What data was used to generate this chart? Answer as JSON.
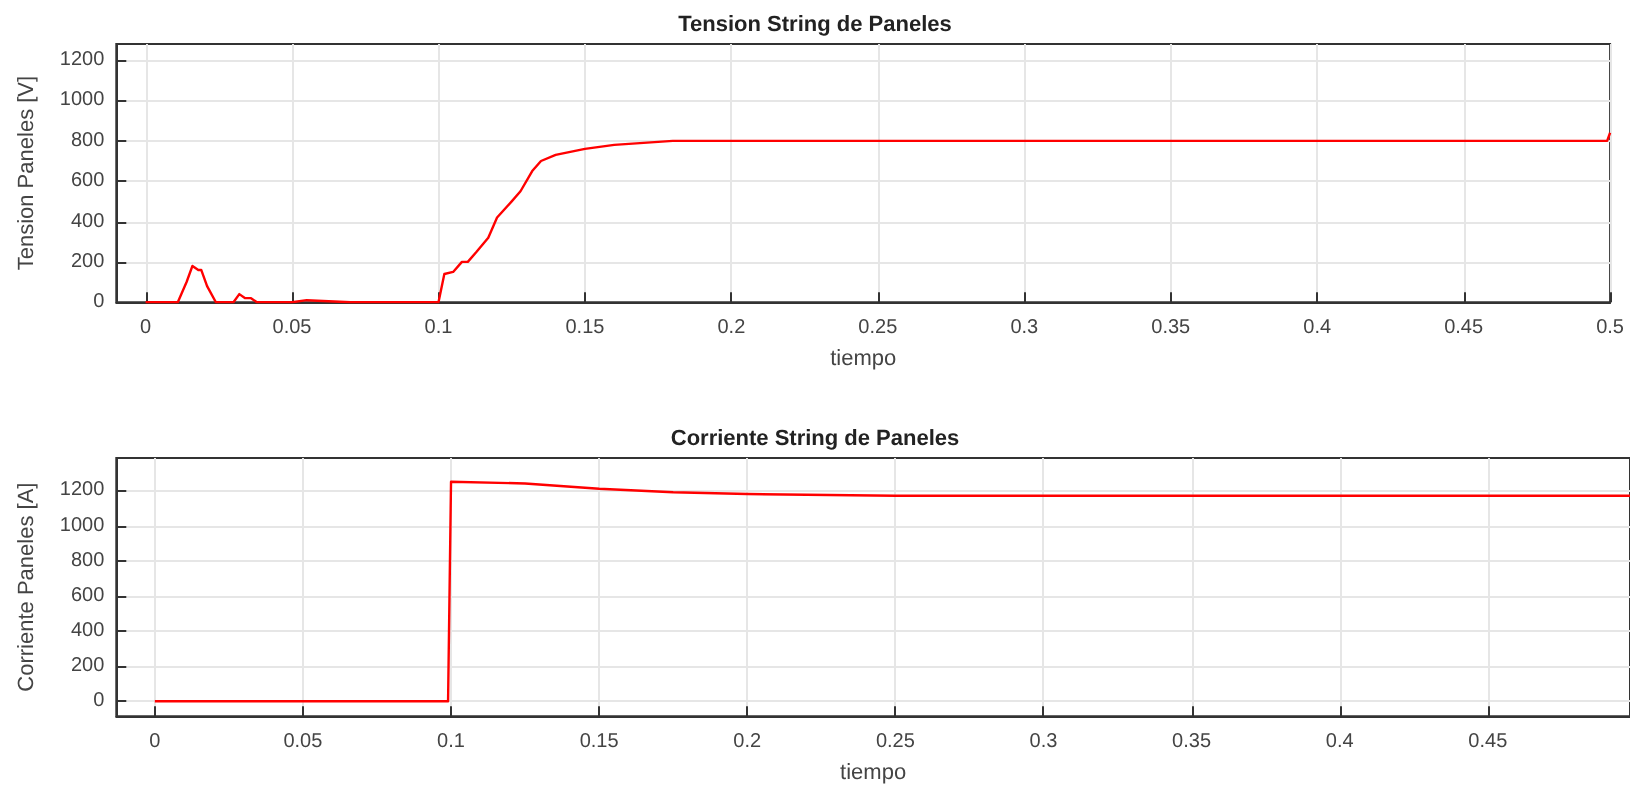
{
  "chart_data": [
    {
      "type": "line",
      "title": "Tension String de Paneles",
      "xlabel": "tiempo",
      "ylabel": "Tension Paneles [V]",
      "grid": true,
      "marker": "none",
      "line_style": "solid",
      "xlim": [
        -0.01,
        0.5
      ],
      "xticks": [
        0,
        0.05,
        0.1,
        0.15,
        0.2,
        0.25,
        0.3,
        0.35,
        0.4,
        0.45,
        0.5
      ],
      "ylim": [
        0,
        1280
      ],
      "yticks": [
        0,
        200,
        400,
        600,
        800,
        1000,
        1200
      ],
      "series": [
        {
          "color": "#ff0000",
          "x": [
            0,
            0.011,
            0.014,
            0.016,
            0.018,
            0.019,
            0.021,
            0.024,
            0.03,
            0.032,
            0.034,
            0.036,
            0.038,
            0.05,
            0.055,
            0.07,
            0.09,
            0.1,
            0.102,
            0.105,
            0.108,
            0.11,
            0.113,
            0.117,
            0.12,
            0.125,
            0.128,
            0.132,
            0.135,
            0.14,
            0.15,
            0.16,
            0.18,
            0.2,
            0.3,
            0.4,
            0.499,
            0.5
          ],
          "values": [
            0,
            0,
            100,
            180,
            160,
            160,
            80,
            0,
            0,
            40,
            20,
            20,
            0,
            0,
            10,
            0,
            0,
            0,
            140,
            150,
            200,
            200,
            250,
            320,
            420,
            500,
            550,
            650,
            700,
            730,
            760,
            780,
            800,
            800,
            800,
            800,
            800,
            840
          ]
        }
      ]
    },
    {
      "type": "line",
      "title": "Corriente String de Paneles",
      "xlabel": "tiempo",
      "ylabel": "Corriente Paneles [A]",
      "grid": true,
      "marker": "none",
      "line_style": "solid",
      "xlim": [
        -0.013,
        0.498
      ],
      "xticks": [
        0,
        0.05,
        0.1,
        0.15,
        0.2,
        0.25,
        0.3,
        0.35,
        0.4,
        0.45
      ],
      "ylim": [
        -85,
        1385
      ],
      "yticks": [
        0,
        200,
        400,
        600,
        800,
        1000,
        1200
      ],
      "series": [
        {
          "color": "#ff0000",
          "x": [
            0,
            0.099,
            0.1,
            0.125,
            0.15,
            0.175,
            0.2,
            0.25,
            0.3,
            0.4,
            0.498
          ],
          "values": [
            0,
            0,
            1250,
            1240,
            1210,
            1190,
            1180,
            1170,
            1170,
            1170,
            1170
          ]
        }
      ]
    }
  ]
}
